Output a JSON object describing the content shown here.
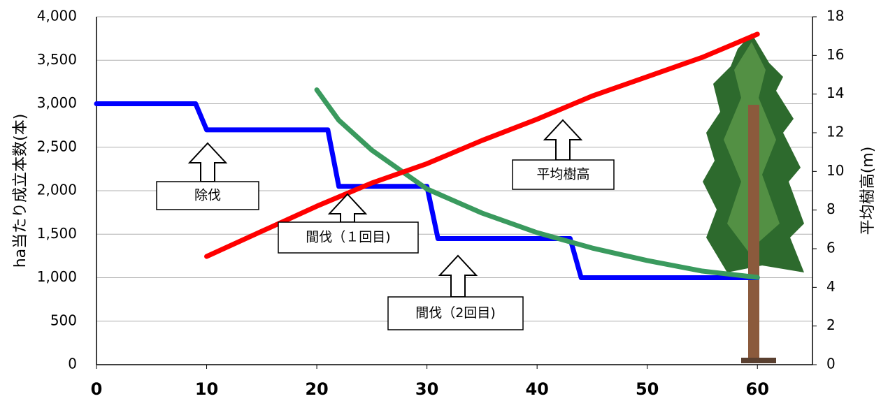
{
  "chart_data": {
    "type": "line",
    "y_label": "ha当たり成立本数(本)",
    "y2_label": "平均樹高(m)",
    "xlim": [
      0,
      65
    ],
    "xticks": [
      0,
      10,
      20,
      30,
      40,
      50,
      60
    ],
    "ylim": [
      0,
      4000
    ],
    "yticks": [
      0,
      500,
      {
        "value": 1000,
        "label": "1,000"
      },
      {
        "value": 1500,
        "label": "1,500"
      },
      {
        "value": 2000,
        "label": "2,000"
      },
      {
        "value": 2500,
        "label": "2,500"
      },
      {
        "value": 3000,
        "label": "3,000"
      },
      {
        "value": 3500,
        "label": "3,500"
      },
      {
        "value": 4000,
        "label": "4,000"
      }
    ],
    "y2lim": [
      0,
      18
    ],
    "y2ticks": [
      0,
      2,
      4,
      6,
      8,
      10,
      12,
      14,
      16,
      18
    ],
    "grid": true,
    "series": [
      {
        "color": "#0000ff",
        "x": [
          0,
          9,
          10,
          21,
          22,
          30,
          31,
          43,
          44,
          60
        ],
        "values": [
          3000,
          3000,
          2700,
          2700,
          2050,
          2050,
          1450,
          1450,
          1000,
          1000
        ]
      },
      {
        "color": "#3a9a5e",
        "x": [
          20,
          22,
          25,
          30,
          35,
          40,
          45,
          50,
          55,
          60
        ],
        "values": [
          3160,
          2810,
          2466,
          2020,
          1743,
          1518,
          1341,
          1197,
          1076,
          1004
        ]
      },
      {
        "color": "#ff0000",
        "axis": "y2",
        "x": [
          10,
          15,
          20,
          25,
          30,
          35,
          40,
          45,
          50,
          55,
          60
        ],
        "values": [
          5.6,
          6.9,
          8.2,
          9.4,
          10.4,
          11.6,
          12.7,
          13.9,
          14.9,
          15.9,
          17.1
        ]
      }
    ],
    "annotations": [
      "除伐",
      "間伐（１回目)",
      "間伐（2回目)",
      "平均樹高"
    ]
  }
}
